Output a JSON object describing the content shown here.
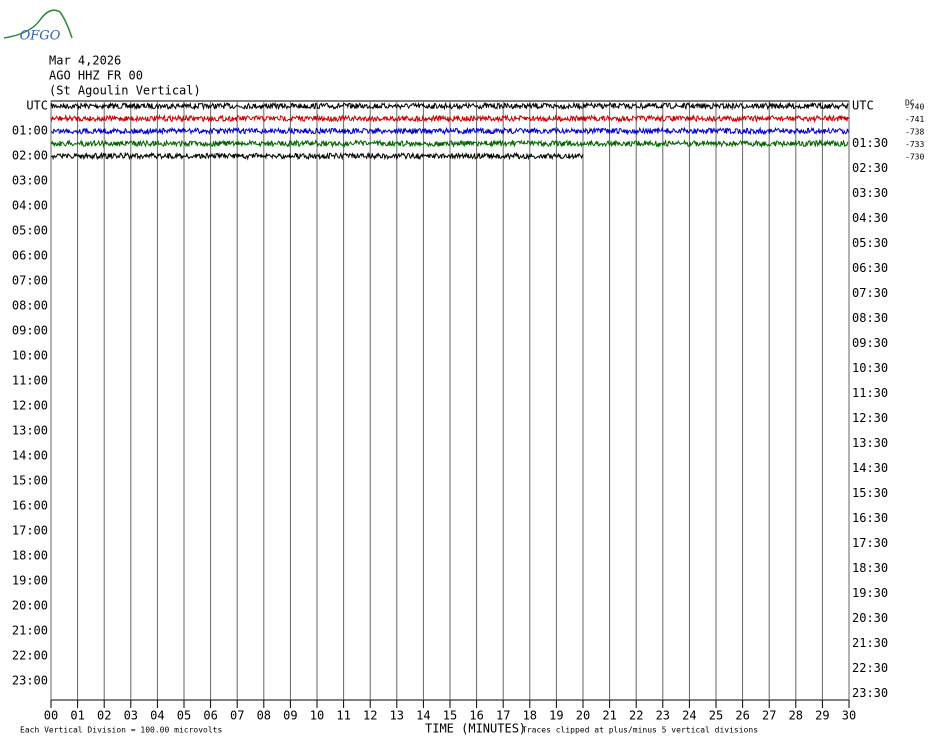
{
  "logo_text": "OFGO",
  "chart_data": {
    "type": "helicorder",
    "date": "Mar 4,2026",
    "station": "AGO HHZ FR 00",
    "station_name": "(St Agoulin Vertical)",
    "left_labels": [
      "UTC",
      "01:00",
      "02:00",
      "03:00",
      "04:00",
      "05:00",
      "06:00",
      "07:00",
      "08:00",
      "09:00",
      "10:00",
      "11:00",
      "12:00",
      "13:00",
      "14:00",
      "15:00",
      "16:00",
      "17:00",
      "18:00",
      "19:00",
      "20:00",
      "21:00",
      "22:00",
      "23:00"
    ],
    "right_labels": [
      "UTC",
      "01:30",
      "02:30",
      "03:30",
      "04:30",
      "05:30",
      "06:30",
      "07:30",
      "08:30",
      "09:30",
      "10:30",
      "11:30",
      "12:30",
      "13:30",
      "14:30",
      "15:30",
      "16:30",
      "17:30",
      "18:30",
      "19:30",
      "20:30",
      "21:30",
      "22:30",
      "23:30"
    ],
    "dc_label": "DC",
    "xlabel": "TIME (MINUTES)",
    "xlim": [
      0,
      30
    ],
    "xticks": [
      {
        "value": 0,
        "label": "00"
      },
      {
        "value": 1,
        "label": "01"
      },
      {
        "value": 2,
        "label": "02"
      },
      {
        "value": 3,
        "label": "03"
      },
      {
        "value": 4,
        "label": "04"
      },
      {
        "value": 5,
        "label": "05"
      },
      {
        "value": 6,
        "label": "06"
      },
      {
        "value": 7,
        "label": "07"
      },
      {
        "value": 8,
        "label": "08"
      },
      {
        "value": 9,
        "label": "09"
      },
      10,
      11,
      12,
      13,
      14,
      15,
      16,
      17,
      18,
      19,
      20,
      21,
      22,
      23,
      24,
      25,
      26,
      27,
      28,
      29,
      30
    ],
    "series": [
      {
        "color": "#000000",
        "values": [
          30
        ],
        "dc": -740
      },
      {
        "color": "#cc0000",
        "values": [
          30
        ],
        "dc": -741
      },
      {
        "color": "#0000cc",
        "values": [
          30
        ],
        "dc": -738
      },
      {
        "color": "#006600",
        "values": [
          30
        ],
        "dc": -733
      },
      {
        "color": "#000000",
        "values": [
          20
        ],
        "dc": -730
      }
    ],
    "footnote_left": "Each Vertical Division =  100.00 microvolts",
    "footnote_right": "Traces clipped at plus/minus 5 vertical divisions"
  }
}
